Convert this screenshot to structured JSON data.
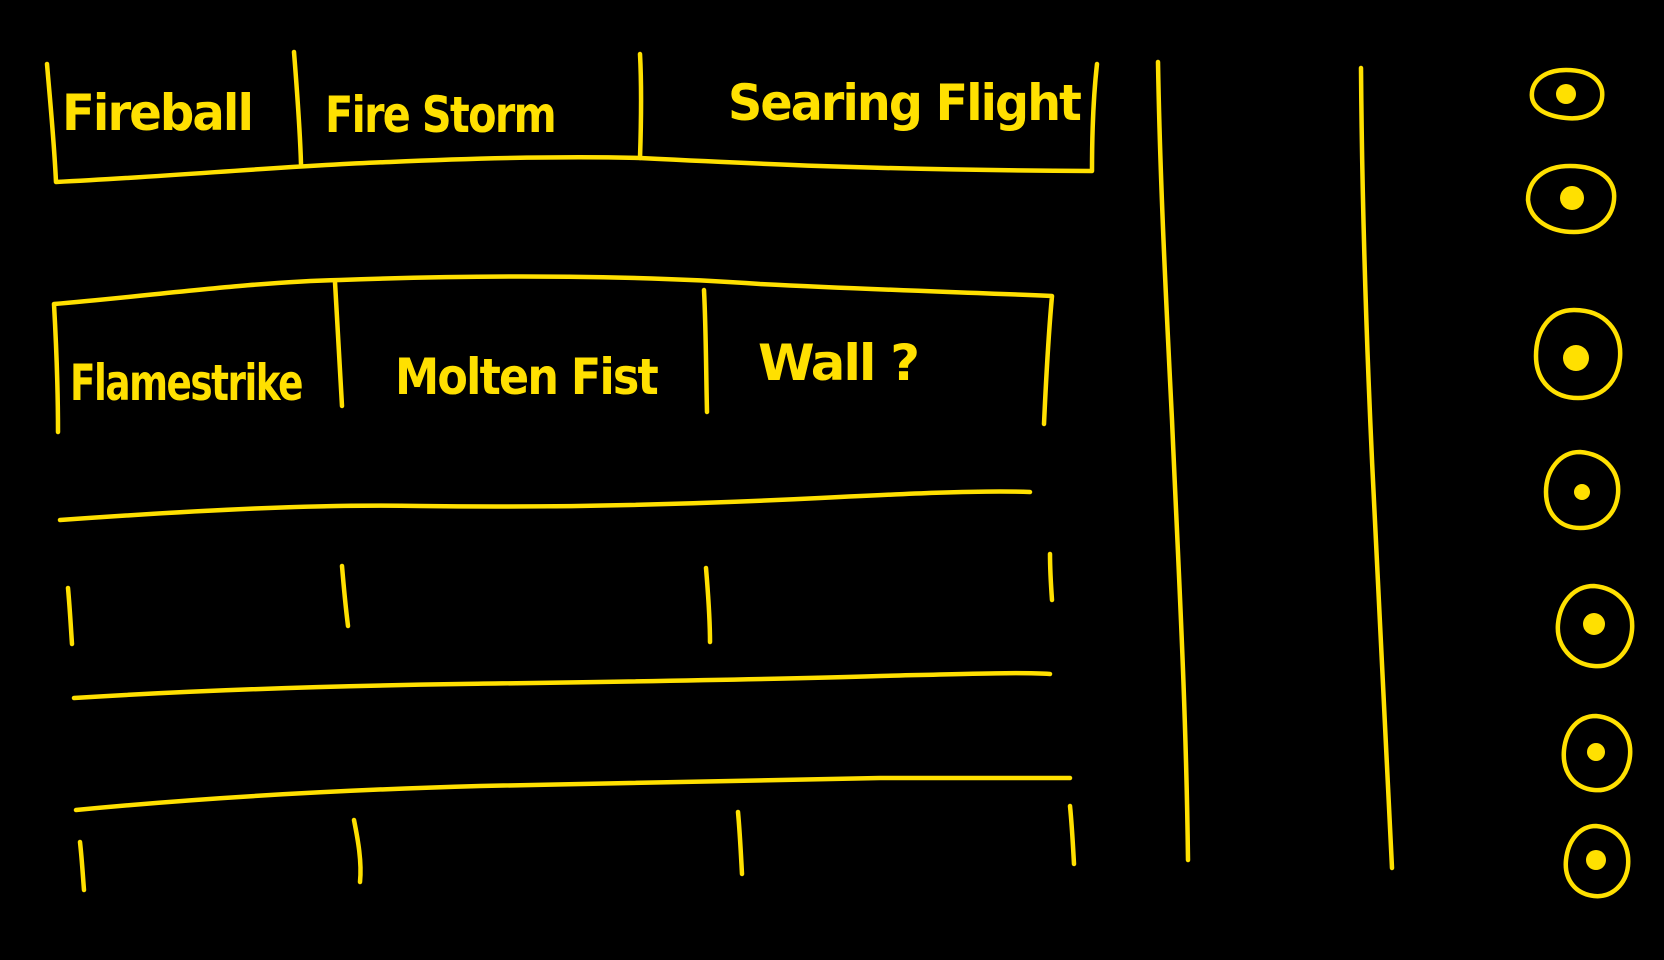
{
  "colors": {
    "background": "#000000",
    "ink": "#FFE000"
  },
  "row1": {
    "slots": [
      {
        "label": "Fireball"
      },
      {
        "label": "Fire Storm"
      },
      {
        "label": "Searing Flight"
      }
    ]
  },
  "row2": {
    "slots": [
      {
        "label": "Flamestrike"
      },
      {
        "label": "Molten Fist"
      },
      {
        "label": "Wall ?"
      }
    ]
  },
  "row3": {
    "slots": [
      {
        "label": ""
      },
      {
        "label": ""
      },
      {
        "label": ""
      }
    ]
  },
  "row4": {
    "slots": [
      {
        "label": ""
      },
      {
        "label": ""
      },
      {
        "label": ""
      }
    ]
  },
  "side_buttons": [
    {
      "icon": "ring-dot-icon"
    },
    {
      "icon": "ring-dot-icon"
    },
    {
      "icon": "ring-dot-icon"
    },
    {
      "icon": "ring-dot-icon"
    },
    {
      "icon": "ring-dot-icon"
    },
    {
      "icon": "ring-dot-icon"
    },
    {
      "icon": "ring-dot-icon"
    }
  ]
}
